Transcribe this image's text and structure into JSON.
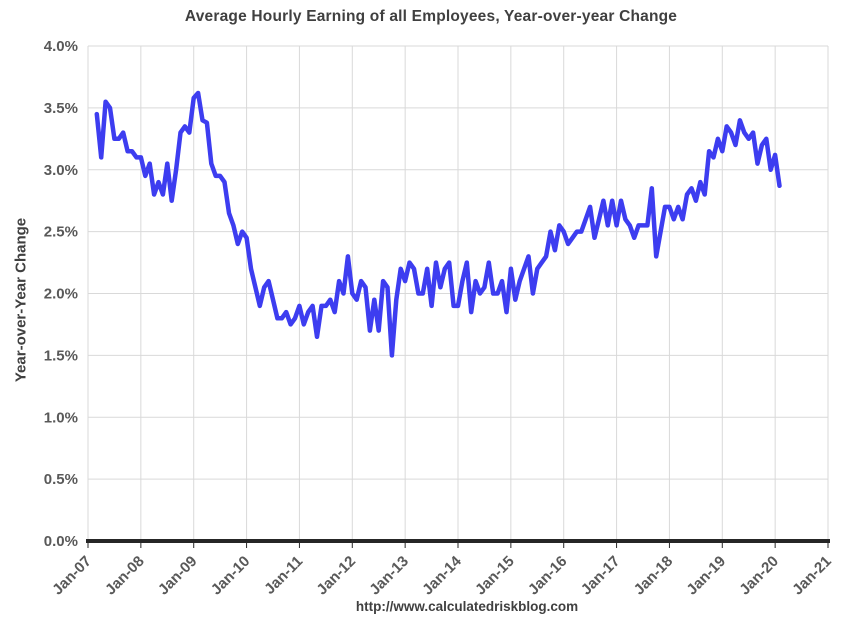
{
  "title": "Average Hourly Earning of all Employees, Year-over-year Change",
  "ylabel": "Year-over-Year Change",
  "footer": "http://www.calculatedriskblog.com",
  "chart_data": {
    "type": "line",
    "series_name": "Average Hourly Earnings, Year-over-Year Change (%)",
    "title": "Average Hourly Earning of all Employees, Year-over-year Change",
    "xlabel": "",
    "ylabel": "Year-over-Year Change",
    "ylim": [
      0,
      4
    ],
    "y_tick_values": [
      0,
      0.5,
      1.0,
      1.5,
      2.0,
      2.5,
      3.0,
      3.5,
      4.0
    ],
    "y_tick_labels": [
      "0.0%",
      "0.5%",
      "1.0%",
      "1.5%",
      "2.0%",
      "2.5%",
      "3.0%",
      "3.5%",
      "4.0%"
    ],
    "x_ticks": [
      "Jan-07",
      "Jan-08",
      "Jan-09",
      "Jan-10",
      "Jan-11",
      "Jan-12",
      "Jan-13",
      "Jan-14",
      "Jan-15",
      "Jan-16",
      "Jan-17",
      "Jan-18",
      "Jan-19",
      "Jan-20",
      "Jan-21"
    ],
    "x_axis_start_year": 2007,
    "x_axis_end_year": 2021,
    "start_month": "2007-03",
    "frequency": "monthly",
    "values": [
      3.45,
      3.1,
      3.55,
      3.5,
      3.25,
      3.25,
      3.3,
      3.15,
      3.15,
      3.1,
      3.1,
      2.95,
      3.05,
      2.8,
      2.9,
      2.8,
      3.05,
      2.75,
      3.0,
      3.3,
      3.35,
      3.3,
      3.58,
      3.62,
      3.4,
      3.38,
      3.05,
      2.95,
      2.95,
      2.9,
      2.65,
      2.55,
      2.4,
      2.5,
      2.45,
      2.2,
      2.05,
      1.9,
      2.05,
      2.1,
      1.95,
      1.8,
      1.8,
      1.85,
      1.75,
      1.8,
      1.9,
      1.75,
      1.85,
      1.9,
      1.65,
      1.9,
      1.9,
      1.95,
      1.85,
      2.1,
      2.0,
      2.3,
      2.0,
      1.95,
      2.1,
      2.05,
      1.7,
      1.95,
      1.7,
      2.1,
      2.05,
      1.5,
      1.95,
      2.2,
      2.1,
      2.25,
      2.2,
      2.0,
      2.0,
      2.2,
      1.9,
      2.25,
      2.05,
      2.2,
      2.25,
      1.9,
      1.9,
      2.1,
      2.25,
      1.85,
      2.1,
      2.0,
      2.05,
      2.25,
      2.0,
      2.0,
      2.1,
      1.85,
      2.2,
      1.95,
      2.1,
      2.2,
      2.3,
      2.0,
      2.2,
      2.25,
      2.3,
      2.5,
      2.35,
      2.55,
      2.5,
      2.4,
      2.45,
      2.5,
      2.5,
      2.6,
      2.7,
      2.45,
      2.6,
      2.75,
      2.55,
      2.75,
      2.55,
      2.75,
      2.6,
      2.55,
      2.45,
      2.55,
      2.55,
      2.55,
      2.85,
      2.3,
      2.5,
      2.7,
      2.7,
      2.6,
      2.7,
      2.6,
      2.8,
      2.85,
      2.75,
      2.9,
      2.8,
      3.15,
      3.1,
      3.25,
      3.15,
      3.35,
      3.3,
      3.2,
      3.4,
      3.3,
      3.25,
      3.3,
      3.05,
      3.2,
      3.25,
      3.0,
      3.12,
      2.87
    ],
    "grid": true,
    "legend": "none",
    "line_color": "#3d3df0",
    "grid_color": "#d9d9d9",
    "axis_color": "#262626",
    "tick_label_color": "#595959"
  }
}
